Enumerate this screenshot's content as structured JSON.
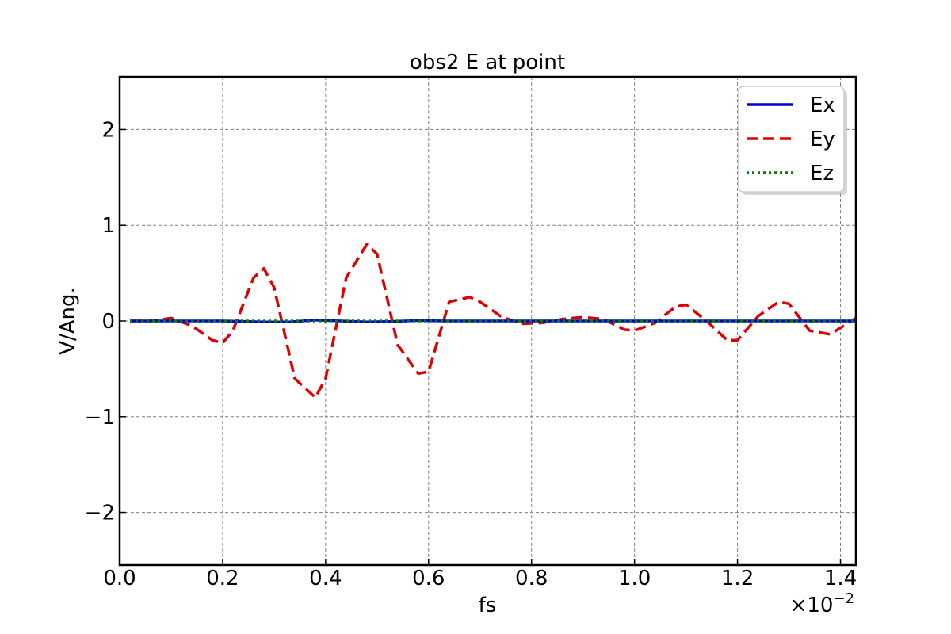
{
  "chart_data": {
    "type": "line",
    "title": "obs2 E at point",
    "xlabel": "fs",
    "ylabel": "V/Ang.",
    "x_scale_label": "×10",
    "x_scale_exponent": "−2",
    "xlim": [
      0.0,
      1.43
    ],
    "ylim": [
      -2.55,
      2.55
    ],
    "x_ticks": [
      0.0,
      0.2,
      0.4,
      0.6,
      0.8,
      1.0,
      1.2,
      1.4
    ],
    "x_tick_labels": [
      "0.0",
      "0.2",
      "0.4",
      "0.6",
      "0.8",
      "1.0",
      "1.2",
      "1.4"
    ],
    "y_ticks": [
      2,
      1,
      0,
      -1,
      -2
    ],
    "y_tick_labels": [
      "2",
      "1",
      "0",
      "−1",
      "−2"
    ],
    "grid": true,
    "legend_position": "top-right",
    "series": [
      {
        "name": "Ex",
        "color": "#0000cc",
        "style": "solid",
        "x": [
          0.02,
          0.1,
          0.2,
          0.28,
          0.33,
          0.38,
          0.43,
          0.48,
          0.53,
          0.58,
          0.63,
          0.7,
          0.8,
          0.9,
          1.0,
          1.1,
          1.2,
          1.3,
          1.43
        ],
        "y": [
          0.0,
          0.0,
          0.0,
          -0.01,
          -0.01,
          0.01,
          0.0,
          -0.01,
          -0.005,
          0.005,
          0.0,
          0.0,
          0.0,
          0.0,
          0.0,
          0.0,
          0.0,
          0.0,
          0.0
        ]
      },
      {
        "name": "Ey",
        "color": "#dd0000",
        "style": "dashed",
        "x": [
          0.02,
          0.06,
          0.1,
          0.14,
          0.18,
          0.2,
          0.22,
          0.26,
          0.28,
          0.3,
          0.34,
          0.38,
          0.4,
          0.44,
          0.48,
          0.5,
          0.54,
          0.58,
          0.6,
          0.64,
          0.68,
          0.7,
          0.74,
          0.78,
          0.82,
          0.86,
          0.9,
          0.94,
          0.98,
          1.0,
          1.04,
          1.08,
          1.1,
          1.14,
          1.18,
          1.2,
          1.24,
          1.28,
          1.3,
          1.34,
          1.38,
          1.43
        ],
        "y": [
          0.0,
          0.0,
          0.03,
          -0.05,
          -0.2,
          -0.23,
          -0.1,
          0.45,
          0.55,
          0.35,
          -0.6,
          -0.8,
          -0.6,
          0.45,
          0.8,
          0.7,
          -0.25,
          -0.55,
          -0.53,
          0.2,
          0.25,
          0.2,
          0.05,
          -0.03,
          -0.02,
          0.02,
          0.04,
          0.02,
          -0.09,
          -0.1,
          -0.02,
          0.15,
          0.17,
          0.0,
          -0.2,
          -0.2,
          0.05,
          0.2,
          0.18,
          -0.1,
          -0.14,
          0.03
        ]
      },
      {
        "name": "Ez",
        "color": "#008000",
        "style": "dotted",
        "x": [
          0.02,
          0.2,
          0.4,
          0.6,
          0.8,
          1.0,
          1.2,
          1.43
        ],
        "y": [
          0.0,
          0.0,
          0.0,
          0.0,
          0.0,
          0.0,
          0.0,
          0.0
        ]
      }
    ]
  }
}
